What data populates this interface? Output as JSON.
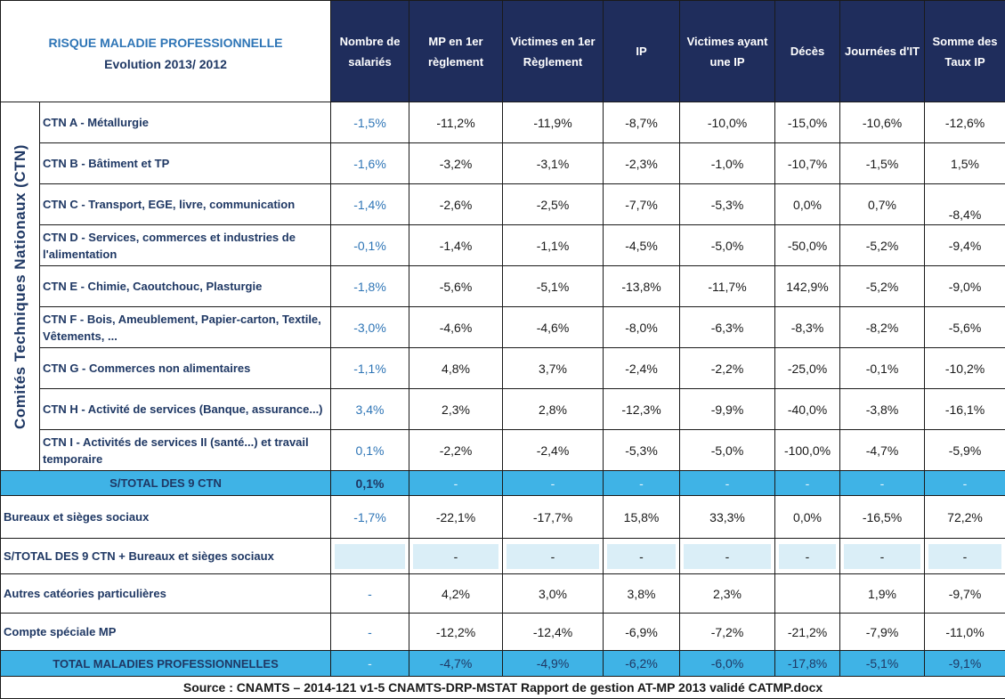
{
  "header": {
    "title": "RISQUE  MALADIE PROFESSIONNELLE",
    "subtitle": "Evolution  2013/ 2012",
    "columns": [
      "Nombre de salariés",
      "MP en 1er règlement",
      "Victimes en 1er Règlement",
      "IP",
      "Victimes ayant une IP",
      "Décès",
      "Journées d'IT",
      "Somme des Taux IP"
    ]
  },
  "side_label": "Comités Techniques Nationaux  (CTN)",
  "ctn_rows": [
    {
      "label": "CTN A - Métallurgie",
      "values": [
        "-1,5%",
        "-11,2%",
        "-11,9%",
        "-8,7%",
        "-10,0%",
        "-15,0%",
        "-10,6%",
        "-12,6%"
      ]
    },
    {
      "label": "CTN B - Bâtiment et TP",
      "values": [
        "-1,6%",
        "-3,2%",
        "-3,1%",
        "-2,3%",
        "-1,0%",
        "-10,7%",
        "-1,5%",
        "1,5%"
      ]
    },
    {
      "label": "CTN C - Transport, EGE, livre, communication",
      "values": [
        "-1,4%",
        "-2,6%",
        "-2,5%",
        "-7,7%",
        "-5,3%",
        "0,0%",
        "0,7%",
        "-8,4%"
      ]
    },
    {
      "label": "CTN D - Services, commerces et industries de l'alimentation",
      "values": [
        "-0,1%",
        "-1,4%",
        "-1,1%",
        "-4,5%",
        "-5,0%",
        "-50,0%",
        "-5,2%",
        "-9,4%"
      ]
    },
    {
      "label": "CTN E - Chimie, Caoutchouc, Plasturgie",
      "values": [
        "-1,8%",
        "-5,6%",
        "-5,1%",
        "-13,8%",
        "-11,7%",
        "142,9%",
        "-5,2%",
        "-9,0%"
      ]
    },
    {
      "label": "CTN F - Bois, Ameublement, Papier-carton, Textile, Vêtements, ...",
      "values": [
        "-3,0%",
        "-4,6%",
        "-4,6%",
        "-8,0%",
        "-6,3%",
        "-8,3%",
        "-8,2%",
        "-5,6%"
      ]
    },
    {
      "label": "CTN G - Commerces non alimentaires",
      "values": [
        "-1,1%",
        "4,8%",
        "3,7%",
        "-2,4%",
        "-2,2%",
        "-25,0%",
        "-0,1%",
        "-10,2%"
      ]
    },
    {
      "label": "CTN H - Activité de services (Banque, assurance...)",
      "values": [
        "3,4%",
        "2,3%",
        "2,8%",
        "-12,3%",
        "-9,9%",
        "-40,0%",
        "-3,8%",
        "-16,1%"
      ]
    },
    {
      "label": "CTN I - Activités de services II (santé...) et travail temporaire",
      "values": [
        "0,1%",
        "-2,2%",
        "-2,4%",
        "-5,3%",
        "-5,0%",
        "-100,0%",
        "-4,7%",
        "-5,9%"
      ]
    }
  ],
  "subtotal_ctn": {
    "label": "S/TOTAL DES 9 CTN",
    "values": [
      "0,1%",
      "-",
      "-",
      "-",
      "-",
      "-",
      "-",
      "-"
    ]
  },
  "bureaux": {
    "label": "Bureaux et sièges sociaux",
    "values": [
      "-1,7%",
      "-22,1%",
      "-17,7%",
      "15,8%",
      "33,3%",
      "0,0%",
      "-16,5%",
      "72,2%"
    ]
  },
  "subtotal_bureaux": {
    "label": "S/TOTAL DES 9 CTN + Bureaux et sièges sociaux",
    "values": [
      "",
      "-",
      "-",
      "-",
      "-",
      "-",
      "-",
      "-"
    ]
  },
  "autres": {
    "label": "Autres catéories particulières",
    "values": [
      "-",
      "4,2%",
      "3,0%",
      "3,8%",
      "2,3%",
      "",
      "1,9%",
      "-9,7%"
    ]
  },
  "compte": {
    "label": "Compte spéciale MP",
    "values": [
      "-",
      "-12,2%",
      "-12,4%",
      "-6,9%",
      "-7,2%",
      "-21,2%",
      "-7,9%",
      "-11,0%"
    ]
  },
  "total": {
    "label": "TOTAL MALADIES PROFESSIONNELLES",
    "values": [
      "-",
      "-4,7%",
      "-4,9%",
      "-6,2%",
      "-6,0%",
      "-17,8%",
      "-5,1%",
      "-9,1%"
    ]
  },
  "source": "Source : CNAMTS – 2014-121 v1-5 CNAMTS-DRP-MSTAT Rapport de gestion AT-MP 2013 validé CATMP.docx",
  "colors": {
    "header_bg": "#1f2d5c",
    "band_bg": "#3fb3e6",
    "light_box": "#daeef7",
    "title_blue": "#2e75b6",
    "label_navy": "#1f3864"
  }
}
